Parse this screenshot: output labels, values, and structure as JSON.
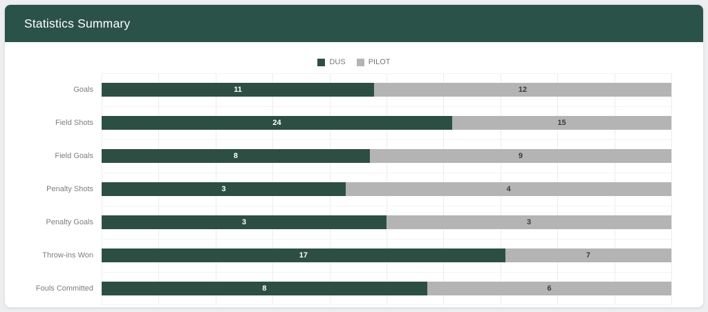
{
  "card": {
    "header": {
      "title": "Statistics Summary",
      "background": "#2b5249",
      "title_color": "#ffffff"
    }
  },
  "legend": {
    "position": "top-center",
    "items": [
      {
        "label": "DUS",
        "color": "#2d4f43"
      },
      {
        "label": "PILOT",
        "color": "#b4b4b4"
      }
    ]
  },
  "chart_data": {
    "type": "bar",
    "orientation": "horizontal",
    "stacked": true,
    "normalized": true,
    "title": "Statistics Summary",
    "xlabel": "",
    "ylabel": "",
    "categories": [
      "Goals",
      "Field Shots",
      "Field Goals",
      "Penalty Shots",
      "Penalty Goals",
      "Throw-ins Won",
      "Fouls Committed"
    ],
    "series": [
      {
        "name": "DUS",
        "color": "#2d4f43",
        "value_label_color": "#ffffff",
        "values": [
          11,
          24,
          8,
          3,
          3,
          17,
          8
        ]
      },
      {
        "name": "PILOT",
        "color": "#b4b4b4",
        "value_label_color": "#3a3a3a",
        "values": [
          12,
          15,
          9,
          4,
          3,
          7,
          6
        ]
      }
    ],
    "grid": {
      "vertical_divisions": 10,
      "horizontal_row_lines": true
    },
    "legend_position": "top-center",
    "value_labels": "inside-center"
  }
}
